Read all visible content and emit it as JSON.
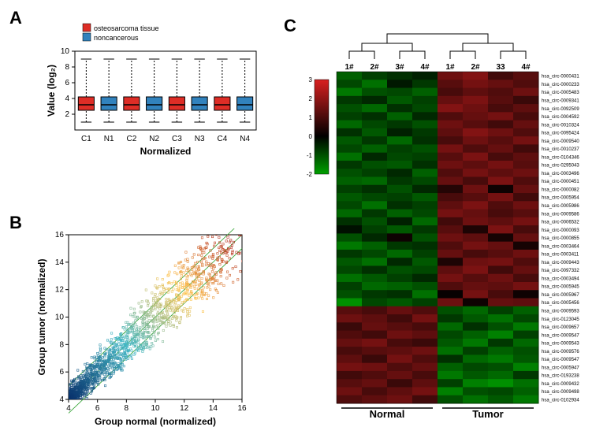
{
  "panelA": {
    "label": "A",
    "boxplot": {
      "type": "boxplot",
      "ylabel": "Value (log₂)",
      "xlabel": "Normalized",
      "categories": [
        "C1",
        "N1",
        "C2",
        "N2",
        "C3",
        "N3",
        "C4",
        "N4"
      ],
      "colors": [
        "#de2d26",
        "#3182bd",
        "#de2d26",
        "#3182bd",
        "#de2d26",
        "#3182bd",
        "#de2d26",
        "#3182bd"
      ],
      "legend": [
        {
          "label": "osteosarcoma tissue",
          "color": "#de2d26"
        },
        {
          "label": "noncancerous",
          "color": "#3182bd"
        }
      ],
      "ylim": [
        0,
        10
      ],
      "yticks": [
        2,
        4,
        6,
        8,
        10
      ],
      "boxes": [
        {
          "q1": 2.5,
          "med": 3.2,
          "q3": 4.2,
          "lo": 1.0,
          "hi": 9.0
        },
        {
          "q1": 2.5,
          "med": 3.2,
          "q3": 4.2,
          "lo": 1.0,
          "hi": 9.0
        },
        {
          "q1": 2.5,
          "med": 3.2,
          "q3": 4.2,
          "lo": 1.0,
          "hi": 9.0
        },
        {
          "q1": 2.5,
          "med": 3.2,
          "q3": 4.2,
          "lo": 1.0,
          "hi": 9.0
        },
        {
          "q1": 2.5,
          "med": 3.2,
          "q3": 4.2,
          "lo": 1.0,
          "hi": 9.0
        },
        {
          "q1": 2.5,
          "med": 3.2,
          "q3": 4.2,
          "lo": 1.0,
          "hi": 9.0
        },
        {
          "q1": 2.5,
          "med": 3.2,
          "q3": 4.2,
          "lo": 1.0,
          "hi": 9.0
        },
        {
          "q1": 2.5,
          "med": 3.2,
          "q3": 4.2,
          "lo": 1.0,
          "hi": 9.0
        }
      ],
      "background_color": "#ffffff",
      "border_color": "#000000",
      "label_fontsize": 12,
      "tick_fontsize": 10
    }
  },
  "panelB": {
    "label": "B",
    "scatter": {
      "type": "scatter",
      "xlabel": "Group normal (normalized)",
      "ylabel": "Group tumor (normalized)",
      "xlim": [
        4,
        16
      ],
      "ylim": [
        4,
        16
      ],
      "xticks": [
        4,
        6,
        8,
        10,
        12,
        14,
        16
      ],
      "yticks": [
        4,
        6,
        8,
        10,
        12,
        14,
        16
      ],
      "diag_line_color": "#2ca02c",
      "colormap_low": "#08306b",
      "colormap_mid": "#41b6c4",
      "colormap_high": "#fec44f",
      "colormap_top": "#a50f15",
      "background_color": "#ffffff",
      "marker_size": 2.5,
      "marker_style": "square_open",
      "label_fontsize": 12,
      "tick_fontsize": 10
    }
  },
  "panelC": {
    "label": "C",
    "heatmap": {
      "type": "heatmap",
      "col_labels": [
        "1#",
        "2#",
        "3#",
        "4#",
        "1#",
        "2#",
        "33",
        "4#"
      ],
      "group_labels": [
        "Normal",
        "Tumor"
      ],
      "colorbar": {
        "ticks": [
          -2,
          -1,
          0,
          1,
          2,
          3
        ],
        "low": "#00a000",
        "mid": "#000000",
        "high": "#d92020"
      },
      "rows": [
        "hsa_circ-0000431",
        "hsa_circ-0000233",
        "hsa_circ-0005483",
        "hsa_circ-0009341",
        "hsa_circ-0092509",
        "hsa_circ-0004592",
        "hsa_circ-0010324",
        "hsa_circ-0095424",
        "hsa_circ-0009540",
        "hsa_circ-0010237",
        "hsa_circ-0104346",
        "hsa_circ-0295043",
        "hsa_circ-0003496",
        "hsa_circ-0000451",
        "hsa_circ-0000082",
        "hsa_circ-0005954",
        "hsa_circ-0005986",
        "hsa_circ-0009586",
        "hsa_circ-0006532",
        "hsa_circ-0000093",
        "hsa_circ-0000855",
        "hsa_circ-0003464",
        "hsa_circ-0003411",
        "hsa_circ-0009443",
        "hsa_circ-0097332",
        "hsa_circ-0003494",
        "hsa_circ-0005945",
        "hsa_circ-0005967",
        "hsa_circ-0005456",
        "hsa_circ-0009593",
        "hsa_circ-0123045",
        "hsa_circ-0009657",
        "hsa_circ-0009547",
        "hsa_circ-0009543",
        "hsa_circ-0009576",
        "hsa_circ-0009547",
        "hsa_circ-0005947",
        "hsa_circ-0193238",
        "hsa_circ-0009432",
        "hsa_circ-0009498",
        "hsa_circ-0102934"
      ],
      "values": [
        [
          -1.2,
          -0.8,
          -0.6,
          -0.4,
          1.5,
          1.8,
          0.9,
          1.2
        ],
        [
          -0.9,
          -1.4,
          -0.3,
          -0.7,
          1.2,
          1.6,
          1.4,
          1.1
        ],
        [
          -1.5,
          -1.0,
          -0.9,
          -1.2,
          1.0,
          1.3,
          1.1,
          1.5
        ],
        [
          -0.7,
          -0.5,
          -1.1,
          -0.8,
          1.4,
          1.7,
          1.2,
          0.8
        ],
        [
          -1.0,
          -1.3,
          -0.6,
          -0.9,
          1.8,
          1.5,
          1.0,
          1.3
        ],
        [
          -0.8,
          -0.6,
          -1.2,
          -0.5,
          1.1,
          1.4,
          1.6,
          1.0
        ],
        [
          -1.3,
          -0.9,
          -0.7,
          -1.0,
          1.5,
          1.2,
          0.9,
          1.4
        ],
        [
          -0.6,
          -1.1,
          -0.4,
          -0.7,
          1.3,
          1.8,
          1.5,
          1.1
        ],
        [
          -1.1,
          -0.7,
          -1.3,
          -0.6,
          1.0,
          1.5,
          1.2,
          1.6
        ],
        [
          -0.9,
          -1.2,
          -0.8,
          -1.0,
          1.6,
          1.1,
          1.4,
          0.9
        ],
        [
          -1.4,
          -0.5,
          -0.9,
          -0.8,
          1.2,
          1.7,
          1.0,
          1.3
        ],
        [
          -0.7,
          -1.0,
          -1.1,
          -0.6,
          1.5,
          1.3,
          1.6,
          1.2
        ],
        [
          -1.0,
          -0.8,
          -0.5,
          -1.2,
          1.1,
          1.6,
          1.3,
          1.5
        ],
        [
          -1.2,
          -1.3,
          -0.7,
          -0.9,
          1.4,
          1.0,
          1.7,
          1.1
        ],
        [
          -0.8,
          -0.6,
          -1.0,
          -0.5,
          0.5,
          1.5,
          0.2,
          1.4
        ],
        [
          -1.1,
          -0.9,
          -0.8,
          -1.1,
          1.0,
          1.2,
          1.6,
          0.9
        ],
        [
          -0.9,
          -1.4,
          -0.6,
          -0.8,
          1.3,
          1.7,
          1.1,
          1.5
        ],
        [
          -1.3,
          -0.7,
          -1.2,
          -0.9,
          1.6,
          1.4,
          1.0,
          1.2
        ],
        [
          -0.6,
          -1.0,
          -0.4,
          -1.3,
          0.9,
          1.5,
          1.3,
          1.6
        ],
        [
          -0.2,
          -0.8,
          -1.1,
          -0.7,
          1.2,
          0.4,
          1.7,
          1.0
        ],
        [
          -1.0,
          -0.5,
          0.2,
          -1.0,
          1.5,
          1.3,
          0.3,
          1.4
        ],
        [
          -1.5,
          -1.2,
          -0.7,
          -0.6,
          1.1,
          1.6,
          1.4,
          0.3
        ],
        [
          -0.7,
          -0.9,
          -1.3,
          -0.8,
          1.4,
          1.0,
          1.2,
          1.5
        ],
        [
          -1.1,
          -1.4,
          -0.5,
          -1.1,
          0.4,
          1.5,
          1.6,
          1.1
        ],
        [
          -0.9,
          -0.6,
          -1.0,
          -0.9,
          1.3,
          1.7,
          0.9,
          1.4
        ],
        [
          -1.4,
          -1.1,
          -0.8,
          -0.5,
          1.6,
          1.2,
          1.5,
          1.0
        ],
        [
          -0.8,
          -1.3,
          -1.2,
          -1.0,
          1.1,
          1.4,
          1.3,
          1.6
        ],
        [
          -1.0,
          -0.7,
          -0.6,
          -1.4,
          0.1,
          1.6,
          1.0,
          0.2
        ],
        [
          -1.8,
          -0.9,
          -1.1,
          -0.8,
          1.5,
          0.2,
          1.4,
          1.3
        ],
        [
          1.2,
          1.0,
          1.4,
          1.1,
          -1.0,
          -1.3,
          -0.8,
          -1.2
        ],
        [
          1.5,
          1.3,
          0.9,
          1.6,
          -0.7,
          -1.1,
          -1.4,
          -0.9
        ],
        [
          0.8,
          1.4,
          1.2,
          1.0,
          -1.3,
          -0.6,
          -1.0,
          -1.5
        ],
        [
          1.1,
          0.9,
          1.5,
          1.3,
          -0.9,
          -1.2,
          -1.6,
          -0.8
        ],
        [
          1.4,
          1.6,
          1.0,
          0.8,
          -1.1,
          -1.5,
          -0.7,
          -1.3
        ],
        [
          1.0,
          1.2,
          1.3,
          1.5,
          -1.4,
          -0.8,
          -1.2,
          -1.0
        ],
        [
          1.3,
          0.8,
          1.6,
          1.1,
          -0.6,
          -1.3,
          -1.5,
          -1.1
        ],
        [
          1.6,
          1.5,
          1.1,
          1.4,
          -1.2,
          -0.9,
          -1.0,
          -1.6
        ],
        [
          0.9,
          1.1,
          1.4,
          1.0,
          -1.5,
          -1.1,
          -1.3,
          -0.7
        ],
        [
          1.2,
          1.4,
          0.8,
          1.3,
          -0.8,
          -1.6,
          -1.8,
          -1.4
        ],
        [
          1.5,
          1.0,
          1.3,
          1.6,
          -1.6,
          -1.0,
          -0.9,
          -1.2
        ],
        [
          1.1,
          1.3,
          1.5,
          0.9,
          -1.0,
          -1.4,
          -1.1,
          -1.5
        ]
      ],
      "dendrogram_color": "#000000",
      "label_fontsize": 6,
      "col_label_fontsize": 10
    }
  }
}
